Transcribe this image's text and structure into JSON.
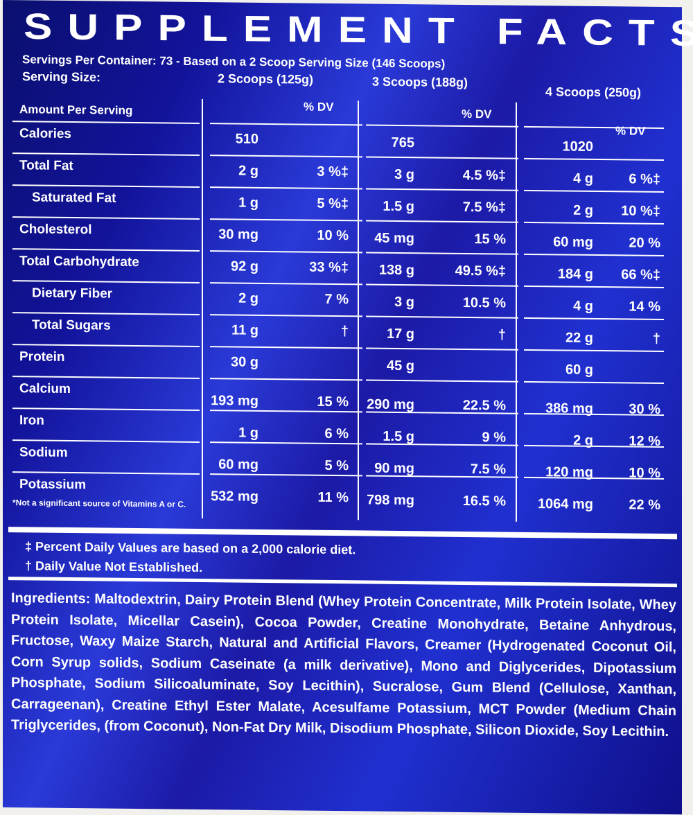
{
  "title": "SUPPLEMENT FACTS",
  "servings_per_container": "Servings Per Container: 73 - Based on a 2 Scoop Serving Size (146 Scoops)",
  "serving_size_label": "Serving Size:",
  "serving_sizes": [
    "2 Scoops (125g)",
    "3 Scoops (188g)",
    "4 Scoops (250g)"
  ],
  "amount_per_serving": "Amount Per Serving",
  "dv_header": "% DV",
  "rows": [
    {
      "name": "Calories",
      "indent": false,
      "values": [
        [
          "510",
          ""
        ],
        [
          "765",
          ""
        ],
        [
          "1020",
          ""
        ]
      ]
    },
    {
      "name": "Total Fat",
      "indent": false,
      "values": [
        [
          "2 g",
          "3 %‡"
        ],
        [
          "3 g",
          "4.5 %‡"
        ],
        [
          "4 g",
          "6 %‡"
        ]
      ]
    },
    {
      "name": "Saturated Fat",
      "indent": true,
      "values": [
        [
          "1 g",
          "5 %‡"
        ],
        [
          "1.5 g",
          "7.5 %‡"
        ],
        [
          "2 g",
          "10 %‡"
        ]
      ]
    },
    {
      "name": "Cholesterol",
      "indent": false,
      "values": [
        [
          "30 mg",
          "10 %"
        ],
        [
          "45 mg",
          "15 %"
        ],
        [
          "60 mg",
          "20 %"
        ]
      ]
    },
    {
      "name": "Total Carbohydrate",
      "indent": false,
      "values": [
        [
          "92 g",
          "33 %‡"
        ],
        [
          "138 g",
          "49.5 %‡"
        ],
        [
          "184 g",
          "66 %‡"
        ]
      ]
    },
    {
      "name": "Dietary Fiber",
      "indent": true,
      "values": [
        [
          "2 g",
          "7 %"
        ],
        [
          "3 g",
          "10.5 %"
        ],
        [
          "4 g",
          "14 %"
        ]
      ]
    },
    {
      "name": "Total Sugars",
      "indent": true,
      "values": [
        [
          "11 g",
          "†"
        ],
        [
          "17 g",
          "†"
        ],
        [
          "22 g",
          "†"
        ]
      ]
    },
    {
      "name": "Protein",
      "indent": false,
      "values": [
        [
          "30 g",
          ""
        ],
        [
          "45 g",
          ""
        ],
        [
          "60 g",
          ""
        ]
      ]
    },
    {
      "name": "Calcium",
      "indent": false,
      "values": [
        [
          "193 mg",
          "15 %"
        ],
        [
          "290 mg",
          "22.5 %"
        ],
        [
          "386 mg",
          "30 %"
        ]
      ]
    },
    {
      "name": "Iron",
      "indent": false,
      "values": [
        [
          "1 g",
          "6 %"
        ],
        [
          "1.5 g",
          "9 %"
        ],
        [
          "2 g",
          "12 %"
        ]
      ]
    },
    {
      "name": "Sodium",
      "indent": false,
      "values": [
        [
          "60 mg",
          "5 %"
        ],
        [
          "90 mg",
          "7.5 %"
        ],
        [
          "120 mg",
          "10 %"
        ]
      ]
    },
    {
      "name": "Potassium",
      "indent": false,
      "values": [
        [
          "532 mg",
          "11 %"
        ],
        [
          "798 mg",
          "16.5 %"
        ],
        [
          "1064 mg",
          "22 %"
        ]
      ]
    }
  ],
  "table_footnote": "*Not a significant source of Vitamins A or C.",
  "footnotes": [
    "‡ Percent Daily Values are based on a 2,000 calorie diet.",
    "† Daily Value Not Established."
  ],
  "ingredients_label": "Ingredients:",
  "ingredients": "Maltodextrin, Dairy Protein Blend (Whey Protein Concentrate, Milk Protein Isolate, Whey Protein Isolate, Micellar Casein), Cocoa Powder, Creatine Monohydrate, Betaine Anhydrous, Fructose, Waxy Maize Starch, Natural and Artificial Flavors, Creamer (Hydrogenated Coconut Oil, Corn Syrup solids, Sodium Caseinate (a milk derivative), Mono and Diglycerides, Dipotassium Phosphate, Sodium Silicoaluminate, Soy Lecithin), Sucralose, Gum Blend (Cellulose, Xanthan, Carrageenan), Creatine Ethyl Ester Malate, Acesulfame Potassium, MCT Powder (Medium Chain Triglycerides, (from Coconut), Non-Fat Dry Milk, Disodium Phosphate, Silicon Dioxide, Soy Lecithin."
}
